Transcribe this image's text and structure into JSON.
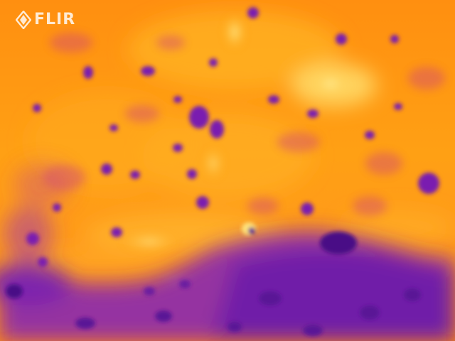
{
  "image": {
    "kind": "thermal-camera-frame",
    "palette": "iron",
    "palette_colors": [
      "#3d0a7a",
      "#7a1fb0",
      "#c2368f",
      "#ef6a1c",
      "#ff9a0d",
      "#ffc230",
      "#fff1a0"
    ]
  },
  "watermark": {
    "brand": "FLIR",
    "icon": "flir-logo-icon"
  }
}
